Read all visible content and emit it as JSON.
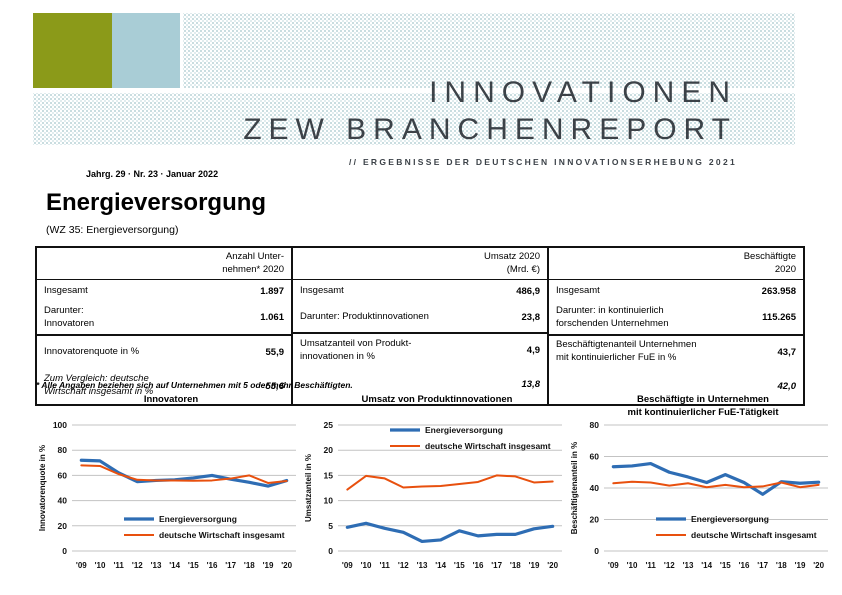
{
  "colors": {
    "olive": "#8B9A19",
    "light_blue": "#A9CDD6",
    "dot": "#B7D2D6",
    "masthead_text": "#3C4248",
    "line_blue": "#2E6DB4",
    "line_orange": "#E8500E",
    "grid": "#C3C3C3"
  },
  "masthead": {
    "title_line1": "INNOVATIONEN",
    "title_line2": "ZEW BRANCHENREPORT",
    "subtitle": "// ERGEBNISSE DER DEUTSCHEN INNOVATIONSERHEBUNG 2021",
    "issue_line": "Jahrg. 29 · Nr. 23 · Januar 2022"
  },
  "page": {
    "title": "Energieversorgung",
    "subtitle": "(WZ 35: Energieversorgung)",
    "footnote": "* Alle Angaben beziehen sich auf Unternehmen mit 5 oder mehr Beschäftigten."
  },
  "table": {
    "groups": [
      {
        "header": "Anzahl Unter-\nnehmen* 2020",
        "row1_label": "Insgesamt",
        "row1_value": "1.897",
        "row2_label": "Darunter:\nInnovatoren",
        "row2_value": "1.061",
        "row3_label": "Innovatorenquote in %",
        "row3_value": "55,9",
        "row4_label": "Zum Vergleich: deutsche\nWirtschaft insgesamt in %",
        "row4_value": "55,6"
      },
      {
        "header": "Umsatz 2020\n(Mrd. €)",
        "row1_label": "Insgesamt",
        "row1_value": "486,9",
        "row2_label": "Darunter: Produktinnovationen",
        "row2_value": "23,8",
        "row3_label": "Umsatzanteil von Produkt-\ninnovationen in %",
        "row3_value": "4,9",
        "row4_label": "",
        "row4_value": "13,8"
      },
      {
        "header": "Beschäftigte\n2020",
        "row1_label": "Insgesamt",
        "row1_value": "263.958",
        "row2_label": "Darunter: in kontinuierlich\nforschenden Unternehmen",
        "row2_value": "115.265",
        "row3_label": "Beschäftigtenanteil Unternehmen\nmit kontinuierlicher FuE in %",
        "row3_value": "43,7",
        "row4_label": "",
        "row4_value": "42,0"
      }
    ]
  },
  "chart_data": [
    {
      "type": "line",
      "title": "Innovatoren",
      "ylabel": "Innovatorenquote in %",
      "ylim": [
        0,
        100
      ],
      "ystep": 20,
      "grid": true,
      "legend_position": "bottom",
      "x": [
        "'09",
        "'10",
        "'11",
        "'12",
        "'13",
        "'14",
        "'15",
        "'16",
        "'17",
        "'18",
        "'19",
        "'20"
      ],
      "series": [
        {
          "name": "Energieversorgung",
          "color": "#2E6DB4",
          "width": 3.2,
          "values": [
            72,
            71.5,
            62,
            55,
            56,
            56.5,
            58,
            60,
            57,
            54.5,
            51.5,
            55.9
          ]
        },
        {
          "name": "deutsche Wirtschaft insgesamt",
          "color": "#E8500E",
          "width": 2,
          "values": [
            68,
            67.5,
            61,
            56.5,
            56,
            56,
            55.8,
            56,
            57.5,
            60,
            54,
            55.6
          ]
        }
      ]
    },
    {
      "type": "line",
      "title": "Umsatz von Produktinnovationen",
      "ylabel": "Umsatzanteil in %",
      "ylim": [
        0,
        25
      ],
      "ystep": 5,
      "grid": true,
      "legend_position": "top",
      "x": [
        "'09",
        "'10",
        "'11",
        "'12",
        "'13",
        "'14",
        "'15",
        "'16",
        "'17",
        "'18",
        "'19",
        "'20"
      ],
      "series": [
        {
          "name": "Energieversorgung",
          "color": "#2E6DB4",
          "width": 3.2,
          "values": [
            4.7,
            5.5,
            4.5,
            3.7,
            1.9,
            2.2,
            4.0,
            3.0,
            3.3,
            3.3,
            4.4,
            4.9
          ]
        },
        {
          "name": "deutsche Wirtschaft insgesamt",
          "color": "#E8500E",
          "width": 2,
          "values": [
            12.2,
            14.9,
            14.4,
            12.6,
            12.8,
            12.9,
            13.3,
            13.7,
            15.0,
            14.8,
            13.6,
            13.8
          ]
        }
      ]
    },
    {
      "type": "line",
      "title": "Beschäftigte in Unternehmen\nmit kontinuierlicher FuE-Tätigkeit",
      "ylabel": "Beschäftigtenanteil in %",
      "ylim": [
        0,
        80
      ],
      "ystep": 20,
      "grid": true,
      "legend_position": "bottom",
      "x": [
        "'09",
        "'10",
        "'11",
        "'12",
        "'13",
        "'14",
        "'15",
        "'16",
        "'17",
        "'18",
        "'19",
        "'20"
      ],
      "series": [
        {
          "name": "Energieversorgung",
          "color": "#2E6DB4",
          "width": 3.2,
          "values": [
            53.5,
            54,
            55.5,
            50,
            47,
            43.5,
            48.5,
            43.5,
            36,
            44,
            43,
            43.7
          ]
        },
        {
          "name": "deutsche Wirtschaft insgesamt",
          "color": "#E8500E",
          "width": 2,
          "values": [
            43,
            44,
            43.5,
            41.5,
            43,
            40.5,
            42,
            40.5,
            41,
            43.5,
            40.5,
            42
          ]
        }
      ]
    }
  ]
}
